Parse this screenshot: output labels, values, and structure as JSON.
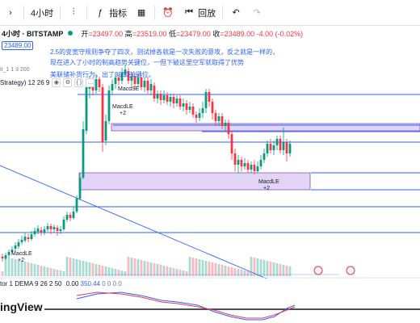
{
  "toolbar": {
    "interval": "4小时",
    "indicators": "指标",
    "replay": "回放"
  },
  "info": {
    "symbol": "4小时 · BITSTAMP",
    "open_label": "开",
    "open": "=23497.00",
    "high_label": "高",
    "high": "=23519.00",
    "low_label": "低",
    "low": "=23479.00",
    "close_label": "收",
    "close": "=23489.00",
    "change": "-4.00 (-0.02%)"
  },
  "price_tag": "23489.00",
  "small_tag": "it_1 1 3 200",
  "strategy": {
    "label": "Strategy) 12 26 9",
    "icon_a": "◉",
    "icon_b": "⚙",
    "icon_c": "{ }",
    "icon_d": "…"
  },
  "annotation": {
    "line1": "2.5的变宽守规则争夺了四次，测试掉各就是一次失败的意攻，反之就是一样的，",
    "line2": "现在进入了小时的制高趋势关键位，一但下破这里空军就取得了优势",
    "line3": "美联储补货行为，出了3950关键位。"
  },
  "signals": {
    "macdse_top": "MacdSE",
    "macdle_mid": "MacdLE",
    "macdle_mid_qty": "+2",
    "macdle_right": "MacdLE",
    "macdle_right_qty": "+2",
    "macdle_left": "MacdLE",
    "macdle_left_qty": "+2"
  },
  "indicator": {
    "label": "tor 1 DEMA 9 26 2 50",
    "val1": "0.00",
    "val2": "350.44",
    "val3": "0 0 0 0"
  },
  "logo": "ingView",
  "colors": {
    "up": "#089981",
    "down": "#f23645",
    "accent": "#2962ff",
    "zone": "#e1d4f5"
  }
}
